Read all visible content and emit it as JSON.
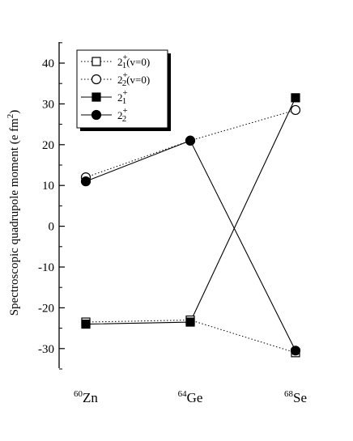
{
  "chart_data": {
    "type": "line",
    "title": "",
    "xlabel": "",
    "ylabel": "Spectroscopic quadrupole moment (e fm",
    "ylabel_sup": "2",
    "ylabel_close": ")",
    "ylim": [
      -35,
      45
    ],
    "yticks": [
      40,
      30,
      20,
      10,
      0,
      -10,
      -20,
      -30
    ],
    "categories": [
      {
        "mass": "60",
        "symbol": "Zn"
      },
      {
        "mass": "64",
        "symbol": "Ge"
      },
      {
        "mass": "68",
        "symbol": "Se"
      }
    ],
    "grid": false,
    "legend_position": "top-left",
    "series": [
      {
        "name_main": "2",
        "name_sup": "+",
        "name_sub": "1",
        "name_suffix": "(v=0)",
        "marker": "square-open",
        "line": "dotted",
        "values": [
          -23.5,
          -23,
          -31
        ]
      },
      {
        "name_main": "2",
        "name_sup": "+",
        "name_sub": "2",
        "name_suffix": "(v=0)",
        "marker": "circle-open",
        "line": "dotted",
        "values": [
          12,
          21,
          28.5
        ]
      },
      {
        "name_main": "2",
        "name_sup": "+",
        "name_sub": "1",
        "name_suffix": "",
        "marker": "square-filled",
        "line": "solid",
        "values": [
          -24,
          -23.5,
          31.5
        ]
      },
      {
        "name_main": "2",
        "name_sup": "+",
        "name_sub": "2",
        "name_suffix": "",
        "marker": "circle-filled",
        "line": "solid",
        "values": [
          11,
          21,
          -30.5
        ]
      }
    ]
  }
}
